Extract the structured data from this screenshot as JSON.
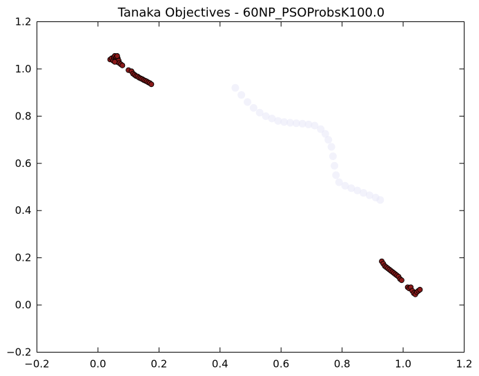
{
  "chart_data": {
    "type": "scatter",
    "title": "Tanaka Objectives - 60NP_PSOProbsK100.0",
    "xlabel": "",
    "ylabel": "",
    "xlim": [
      -0.2,
      1.2
    ],
    "ylim": [
      -0.2,
      1.2
    ],
    "x_ticks": [
      -0.2,
      0.0,
      0.2,
      0.4,
      0.6,
      0.8,
      1.0,
      1.2
    ],
    "x_tick_labels": [
      "−0.2",
      "0.0",
      "0.2",
      "0.4",
      "0.6",
      "0.8",
      "1.0",
      "1.2"
    ],
    "y_ticks": [
      -0.2,
      0.0,
      0.2,
      0.4,
      0.6,
      0.8,
      1.0,
      1.2
    ],
    "y_tick_labels": [
      "−0.2",
      "0.0",
      "0.2",
      "0.4",
      "0.6",
      "0.8",
      "1.0",
      "1.2"
    ],
    "grid": false,
    "legend": false,
    "series": [
      {
        "role": "true-front",
        "color": "#e8e8f8",
        "opacity": 0.55,
        "x": [
          0.45,
          0.47,
          0.49,
          0.51,
          0.53,
          0.55,
          0.57,
          0.59,
          0.61,
          0.63,
          0.65,
          0.67,
          0.69,
          0.71,
          0.73,
          0.745,
          0.755,
          0.765,
          0.77,
          0.775,
          0.78,
          0.79,
          0.81,
          0.83,
          0.85,
          0.87,
          0.89,
          0.91,
          0.925
        ],
        "y": [
          0.92,
          0.89,
          0.86,
          0.835,
          0.815,
          0.8,
          0.79,
          0.78,
          0.775,
          0.772,
          0.77,
          0.768,
          0.765,
          0.76,
          0.745,
          0.725,
          0.7,
          0.67,
          0.63,
          0.59,
          0.55,
          0.52,
          0.505,
          0.495,
          0.485,
          0.475,
          0.465,
          0.455,
          0.445
        ]
      },
      {
        "role": "solutions",
        "color": "#8b1a1a",
        "edge": "#000000",
        "x": [
          0.04,
          0.045,
          0.05,
          0.052,
          0.055,
          0.058,
          0.06,
          0.062,
          0.065,
          0.068,
          0.07,
          0.075,
          0.08,
          0.055,
          0.063,
          0.1,
          0.11,
          0.115,
          0.12,
          0.125,
          0.13,
          0.135,
          0.14,
          0.145,
          0.15,
          0.155,
          0.16,
          0.165,
          0.17,
          0.175,
          0.93,
          0.935,
          0.94,
          0.945,
          0.95,
          0.955,
          0.96,
          0.965,
          0.97,
          0.975,
          0.98,
          0.985,
          0.99,
          0.995,
          1.015,
          1.02,
          1.025,
          1.03,
          1.035,
          1.04,
          1.045,
          1.05,
          1.055
        ],
        "y": [
          1.04,
          1.045,
          1.035,
          1.05,
          1.055,
          1.04,
          1.05,
          1.03,
          1.045,
          1.035,
          1.025,
          1.02,
          1.015,
          1.03,
          1.055,
          0.995,
          0.99,
          0.98,
          0.975,
          0.97,
          0.968,
          0.963,
          0.96,
          0.957,
          0.953,
          0.95,
          0.947,
          0.943,
          0.94,
          0.935,
          0.185,
          0.175,
          0.165,
          0.16,
          0.155,
          0.15,
          0.145,
          0.14,
          0.135,
          0.13,
          0.125,
          0.12,
          0.11,
          0.105,
          0.075,
          0.07,
          0.075,
          0.06,
          0.05,
          0.045,
          0.055,
          0.06,
          0.065
        ]
      }
    ]
  }
}
